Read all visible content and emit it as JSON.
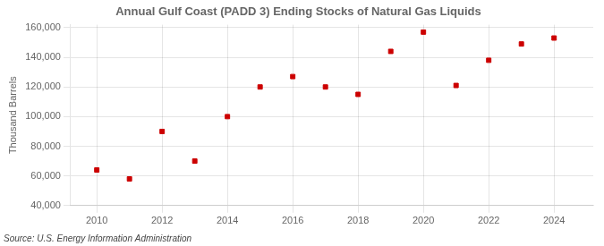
{
  "chart_data": {
    "type": "scatter",
    "title": "Annual Gulf Coast (PADD 3) Ending Stocks of Natural Gas Liquids",
    "ylabel": "Thousand Barrels",
    "annotation": "Source: U.S. Energy Information Administration",
    "x": [
      2010,
      2011,
      2012,
      2013,
      2014,
      2015,
      2016,
      2017,
      2018,
      2019,
      2020,
      2021,
      2022,
      2023,
      2024
    ],
    "values": [
      64000,
      58000,
      90000,
      70000,
      100000,
      120000,
      127000,
      120000,
      115000,
      144000,
      157000,
      121000,
      138000,
      149000,
      153000
    ],
    "color": "#cc0000",
    "marker": "square",
    "xlim": [
      2009.2,
      2025.2
    ],
    "xticks": [
      2010,
      2012,
      2014,
      2016,
      2018,
      2020,
      2022,
      2024
    ],
    "ylim": [
      40000,
      162000
    ],
    "yticks": [
      {
        "value": 40000,
        "label": "40,000"
      },
      {
        "value": 60000,
        "label": "60,000"
      },
      {
        "value": 80000,
        "label": "80,000"
      },
      {
        "value": 100000,
        "label": "100,000"
      },
      {
        "value": 120000,
        "label": "120,000"
      },
      {
        "value": 140000,
        "label": "140,000"
      },
      {
        "value": 160000,
        "label": "160,000"
      }
    ],
    "grid": true
  }
}
